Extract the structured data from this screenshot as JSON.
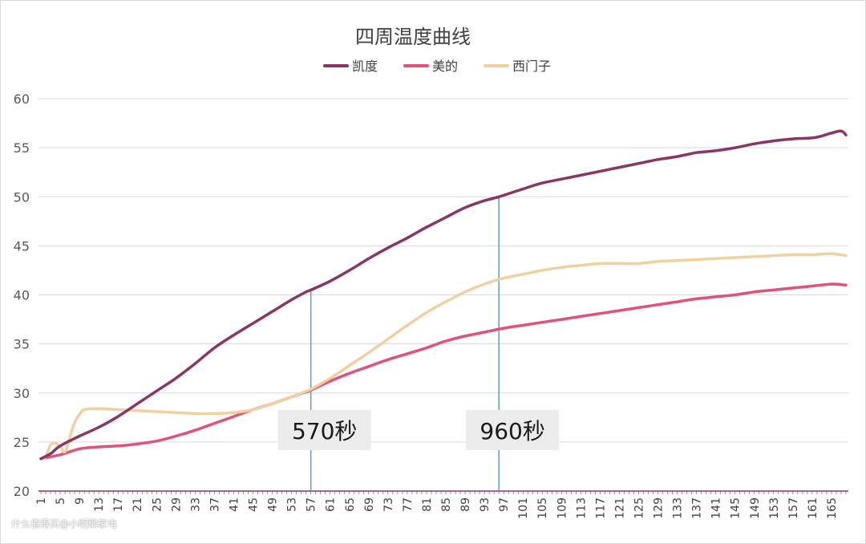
{
  "chart_data": {
    "type": "line",
    "title": "四周温度曲线",
    "xlabel": "",
    "ylabel": "",
    "ylim": [
      20,
      60
    ],
    "yticks": [
      20,
      25,
      30,
      35,
      40,
      45,
      50,
      55,
      60
    ],
    "x_range": [
      1,
      168
    ],
    "x_tick_start": 1,
    "x_tick_step": 4,
    "grid": true,
    "legend_position": "top-center",
    "series": [
      {
        "name": "凯度",
        "color": "#8b3566",
        "points": [
          [
            1,
            23.3
          ],
          [
            3,
            23.8
          ],
          [
            5,
            24.6
          ],
          [
            9,
            25.6
          ],
          [
            13,
            26.5
          ],
          [
            17,
            27.6
          ],
          [
            21,
            28.9
          ],
          [
            25,
            30.2
          ],
          [
            29,
            31.5
          ],
          [
            33,
            33.0
          ],
          [
            37,
            34.6
          ],
          [
            41,
            35.9
          ],
          [
            45,
            37.1
          ],
          [
            49,
            38.3
          ],
          [
            53,
            39.5
          ],
          [
            56,
            40.3
          ],
          [
            57,
            40.5
          ],
          [
            61,
            41.4
          ],
          [
            65,
            42.5
          ],
          [
            69,
            43.7
          ],
          [
            73,
            44.8
          ],
          [
            77,
            45.8
          ],
          [
            81,
            46.9
          ],
          [
            85,
            47.9
          ],
          [
            89,
            48.9
          ],
          [
            93,
            49.6
          ],
          [
            96,
            50.0
          ],
          [
            101,
            50.8
          ],
          [
            105,
            51.4
          ],
          [
            109,
            51.8
          ],
          [
            113,
            52.2
          ],
          [
            117,
            52.6
          ],
          [
            121,
            53.0
          ],
          [
            125,
            53.4
          ],
          [
            129,
            53.8
          ],
          [
            133,
            54.1
          ],
          [
            137,
            54.5
          ],
          [
            141,
            54.7
          ],
          [
            145,
            55.0
          ],
          [
            149,
            55.4
          ],
          [
            153,
            55.7
          ],
          [
            157,
            55.9
          ],
          [
            161,
            56.0
          ],
          [
            163,
            56.2
          ],
          [
            165,
            56.5
          ],
          [
            167,
            56.7
          ],
          [
            168,
            56.3
          ]
        ]
      },
      {
        "name": "美的",
        "color": "#e5507a",
        "points": [
          [
            1,
            23.3
          ],
          [
            5,
            23.7
          ],
          [
            9,
            24.3
          ],
          [
            13,
            24.5
          ],
          [
            17,
            24.6
          ],
          [
            21,
            24.8
          ],
          [
            25,
            25.1
          ],
          [
            29,
            25.6
          ],
          [
            33,
            26.2
          ],
          [
            37,
            26.9
          ],
          [
            41,
            27.6
          ],
          [
            45,
            28.3
          ],
          [
            49,
            28.9
          ],
          [
            53,
            29.6
          ],
          [
            57,
            30.3
          ],
          [
            61,
            31.2
          ],
          [
            65,
            32.0
          ],
          [
            69,
            32.7
          ],
          [
            73,
            33.4
          ],
          [
            77,
            34.0
          ],
          [
            81,
            34.6
          ],
          [
            85,
            35.3
          ],
          [
            89,
            35.8
          ],
          [
            93,
            36.2
          ],
          [
            97,
            36.6
          ],
          [
            101,
            36.9
          ],
          [
            105,
            37.2
          ],
          [
            109,
            37.5
          ],
          [
            113,
            37.8
          ],
          [
            117,
            38.1
          ],
          [
            121,
            38.4
          ],
          [
            125,
            38.7
          ],
          [
            129,
            39.0
          ],
          [
            133,
            39.3
          ],
          [
            137,
            39.6
          ],
          [
            141,
            39.8
          ],
          [
            145,
            40.0
          ],
          [
            149,
            40.3
          ],
          [
            153,
            40.5
          ],
          [
            157,
            40.7
          ],
          [
            161,
            40.9
          ],
          [
            165,
            41.1
          ],
          [
            168,
            41.0
          ]
        ]
      },
      {
        "name": "西门子",
        "color": "#f2cf9e",
        "points": [
          [
            1,
            23.3
          ],
          [
            2,
            23.5
          ],
          [
            3,
            24.7
          ],
          [
            4,
            24.9
          ],
          [
            5,
            24.5
          ],
          [
            6,
            24.0
          ],
          [
            7,
            25.5
          ],
          [
            8,
            27.0
          ],
          [
            9,
            27.8
          ],
          [
            10,
            28.3
          ],
          [
            13,
            28.4
          ],
          [
            17,
            28.3
          ],
          [
            21,
            28.2
          ],
          [
            25,
            28.1
          ],
          [
            29,
            28.0
          ],
          [
            33,
            27.9
          ],
          [
            37,
            27.9
          ],
          [
            41,
            28.0
          ],
          [
            45,
            28.3
          ],
          [
            49,
            28.9
          ],
          [
            53,
            29.6
          ],
          [
            57,
            30.4
          ],
          [
            61,
            31.5
          ],
          [
            65,
            32.8
          ],
          [
            69,
            34.1
          ],
          [
            73,
            35.5
          ],
          [
            77,
            36.9
          ],
          [
            81,
            38.2
          ],
          [
            85,
            39.3
          ],
          [
            89,
            40.3
          ],
          [
            93,
            41.1
          ],
          [
            97,
            41.7
          ],
          [
            101,
            42.1
          ],
          [
            105,
            42.5
          ],
          [
            109,
            42.8
          ],
          [
            113,
            43.0
          ],
          [
            117,
            43.2
          ],
          [
            121,
            43.2
          ],
          [
            125,
            43.2
          ],
          [
            129,
            43.4
          ],
          [
            133,
            43.5
          ],
          [
            137,
            43.6
          ],
          [
            141,
            43.7
          ],
          [
            145,
            43.8
          ],
          [
            149,
            43.9
          ],
          [
            153,
            44.0
          ],
          [
            157,
            44.1
          ],
          [
            161,
            44.1
          ],
          [
            165,
            44.2
          ],
          [
            168,
            44.0
          ]
        ]
      }
    ],
    "annotations": [
      {
        "label": "570秒",
        "x": 57,
        "y_top": 40.5
      },
      {
        "label": "960秒",
        "x": 96,
        "y_top": 50.0
      }
    ]
  },
  "watermark": "什么值得买@小明聊家电"
}
